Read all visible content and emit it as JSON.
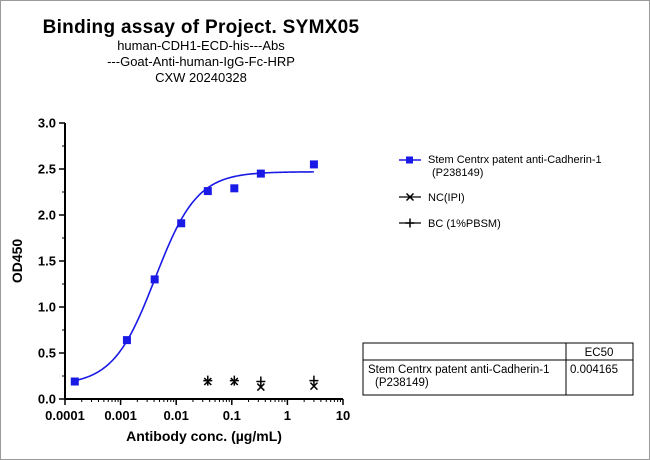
{
  "chart_data": {
    "type": "scatter",
    "title": "Binding assay of  Project. SYMX05",
    "subtitle_lines": [
      "human-CDH1-ECD-his---Abs",
      "---Goat-Anti-human-IgG-Fc-HRP",
      "CXW   20240328"
    ],
    "xlabel": "Antibody conc. (µg/mL)",
    "ylabel": "OD450",
    "x_scale": "log",
    "xlim": [
      0.0001,
      10
    ],
    "ylim": [
      0,
      3.0
    ],
    "x_ticks": [
      {
        "value": 0.0001,
        "label": "0.0001"
      },
      {
        "value": 0.001,
        "label": "0.001"
      },
      {
        "value": 0.01,
        "label": "0.01"
      },
      {
        "value": 0.1,
        "label": "0.1"
      },
      {
        "value": 1,
        "label": "1"
      },
      {
        "value": 10,
        "label": "10"
      }
    ],
    "y_ticks": [
      {
        "value": 0,
        "label": "0.0"
      },
      {
        "value": 0.5,
        "label": "0.5"
      },
      {
        "value": 1.0,
        "label": "1.0"
      },
      {
        "value": 1.5,
        "label": "1.5"
      },
      {
        "value": 2.0,
        "label": "2.0"
      },
      {
        "value": 2.5,
        "label": "2.5"
      },
      {
        "value": 3.0,
        "label": "3.0"
      }
    ],
    "grid": false,
    "legend_position": "right",
    "series": [
      {
        "name": "Stem Centrx patent anti-Cadherin-1",
        "name_line2": "(P238149)",
        "marker": "square",
        "color": "#1a1ae6",
        "x": [
          0.00015,
          0.0013,
          0.0041,
          0.0123,
          0.037,
          0.111,
          0.333,
          3.0
        ],
        "y": [
          0.19,
          0.64,
          1.3,
          1.91,
          2.26,
          2.29,
          2.45,
          2.55
        ],
        "fit": {
          "bottom": 0.15,
          "top": 2.47,
          "ec50": 0.004165,
          "hill": 1.15
        }
      },
      {
        "name": "NC(IPI)",
        "marker": "x",
        "color": "#000000",
        "x": [
          0.037,
          0.111,
          0.333,
          3.0
        ],
        "y": [
          0.19,
          0.19,
          0.13,
          0.14
        ]
      },
      {
        "name": "BC (1%PBSM)",
        "marker": "plus",
        "color": "#000000",
        "x": [
          0.037,
          0.111,
          0.333,
          3.0
        ],
        "y": [
          0.2,
          0.2,
          0.19,
          0.2
        ]
      }
    ],
    "results_table": {
      "header": "EC50",
      "row_label_line1": "Stem Centrx patent anti-Cadherin-1",
      "row_label_line2": "(P238149)",
      "value": "0.004165"
    }
  }
}
